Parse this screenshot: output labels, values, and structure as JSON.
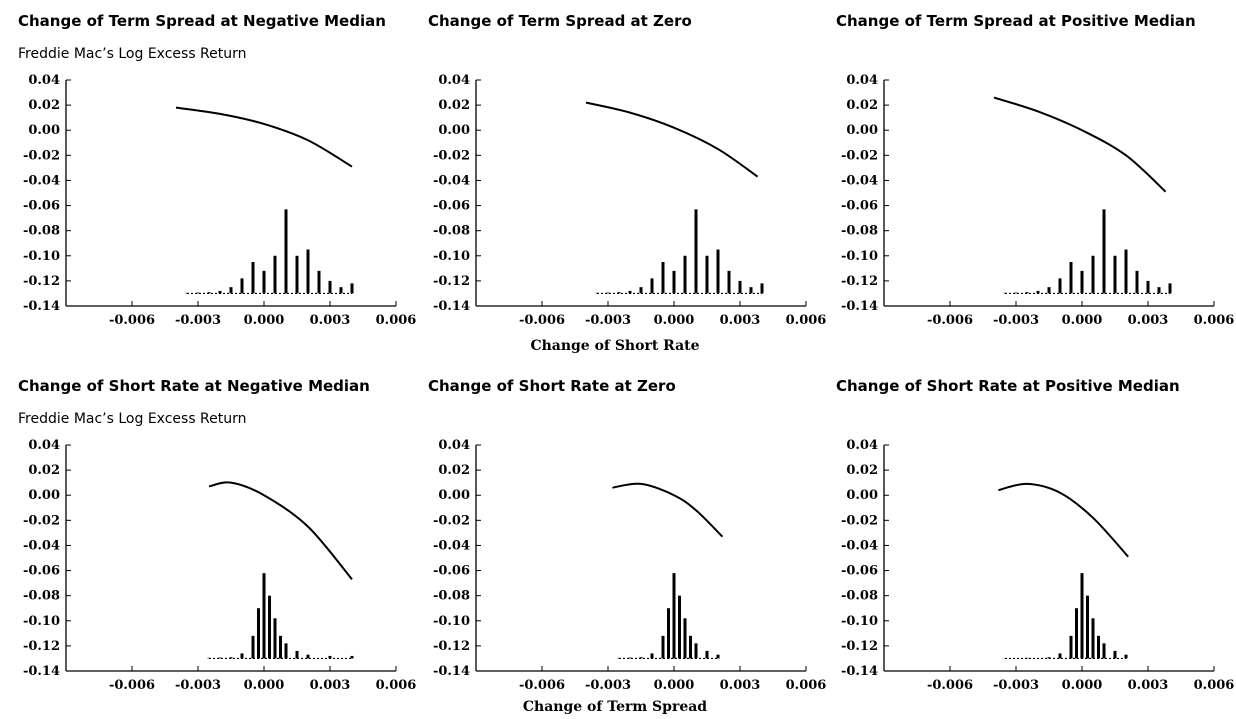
{
  "figure": {
    "xlabel_row1": "Change of Short Rate",
    "xlabel_row2": "Change of Term Spread"
  },
  "chart_data": [
    {
      "type": "line",
      "title": "Change of Term Spread at Negative Median",
      "ylabel": "Freddie Mac’s Log Excess Return",
      "xlabel": "",
      "xlim": [
        -0.009,
        0.006
      ],
      "ylim": [
        -0.14,
        0.04
      ],
      "xticks": [
        "-0.006",
        "-0.003",
        "0.000",
        "0.003",
        "0.006"
      ],
      "xtick_values": [
        -0.006,
        -0.003,
        0.0,
        0.003,
        0.006
      ],
      "yticks": [
        "0.04",
        "0.02",
        "0.00",
        "-0.02",
        "-0.04",
        "-0.06",
        "-0.08",
        "-0.10",
        "-0.12",
        "-0.14"
      ],
      "ytick_values": [
        0.04,
        0.02,
        0.0,
        -0.02,
        -0.04,
        -0.06,
        -0.08,
        -0.1,
        -0.12,
        -0.14
      ],
      "series": [
        {
          "x": [
            -0.004,
            -0.002,
            0.0,
            0.002,
            0.004
          ],
          "y": [
            0.018,
            0.013,
            0.005,
            -0.008,
            -0.029
          ]
        }
      ],
      "histogram": {
        "baseline": -0.13,
        "x": [
          -0.0035,
          -0.003,
          -0.0025,
          -0.002,
          -0.0015,
          -0.001,
          -0.0005,
          0.0,
          0.0005,
          0.001,
          0.0015,
          0.002,
          0.0025,
          0.003,
          0.0035,
          0.004
        ],
        "y": [
          -0.1295,
          -0.1293,
          -0.129,
          -0.128,
          -0.125,
          -0.118,
          -0.105,
          -0.112,
          -0.1,
          -0.063,
          -0.1,
          -0.095,
          -0.112,
          -0.12,
          -0.125,
          -0.122
        ]
      }
    },
    {
      "type": "line",
      "title": "Change of Term Spread at Zero",
      "ylabel": "",
      "xlabel": "Change of Short Rate",
      "xlim": [
        -0.009,
        0.006
      ],
      "ylim": [
        -0.14,
        0.04
      ],
      "xticks": [
        "-0.006",
        "-0.003",
        "0.000",
        "0.003",
        "0.006"
      ],
      "xtick_values": [
        -0.006,
        -0.003,
        0.0,
        0.003,
        0.006
      ],
      "yticks": [
        "0.04",
        "0.02",
        "0.00",
        "-0.02",
        "-0.04",
        "-0.06",
        "-0.08",
        "-0.10",
        "-0.12",
        "-0.14"
      ],
      "ytick_values": [
        0.04,
        0.02,
        0.0,
        -0.02,
        -0.04,
        -0.06,
        -0.08,
        -0.1,
        -0.12,
        -0.14
      ],
      "series": [
        {
          "x": [
            -0.004,
            -0.002,
            0.0,
            0.002,
            0.0038
          ],
          "y": [
            0.022,
            0.014,
            0.002,
            -0.015,
            -0.037
          ]
        }
      ],
      "histogram": {
        "baseline": -0.13,
        "x": [
          -0.0035,
          -0.003,
          -0.0025,
          -0.002,
          -0.0015,
          -0.001,
          -0.0005,
          0.0,
          0.0005,
          0.001,
          0.0015,
          0.002,
          0.0025,
          0.003,
          0.0035,
          0.004
        ],
        "y": [
          -0.1295,
          -0.1293,
          -0.129,
          -0.128,
          -0.125,
          -0.118,
          -0.105,
          -0.112,
          -0.1,
          -0.063,
          -0.1,
          -0.095,
          -0.112,
          -0.12,
          -0.125,
          -0.122
        ]
      }
    },
    {
      "type": "line",
      "title": "Change of Term Spread at Positive Median",
      "ylabel": "",
      "xlabel": "",
      "xlim": [
        -0.009,
        0.006
      ],
      "ylim": [
        -0.14,
        0.04
      ],
      "xticks": [
        "-0.006",
        "-0.003",
        "0.000",
        "0.003",
        "0.006"
      ],
      "xtick_values": [
        -0.006,
        -0.003,
        0.0,
        0.003,
        0.006
      ],
      "yticks": [
        "0.04",
        "0.02",
        "0.00",
        "-0.02",
        "-0.04",
        "-0.06",
        "-0.08",
        "-0.10",
        "-0.12",
        "-0.14"
      ],
      "ytick_values": [
        0.04,
        0.02,
        0.0,
        -0.02,
        -0.04,
        -0.06,
        -0.08,
        -0.1,
        -0.12,
        -0.14
      ],
      "series": [
        {
          "x": [
            -0.004,
            -0.002,
            0.0,
            0.002,
            0.0038
          ],
          "y": [
            0.026,
            0.015,
            0.0,
            -0.02,
            -0.049
          ]
        }
      ],
      "histogram": {
        "baseline": -0.13,
        "x": [
          -0.0035,
          -0.003,
          -0.0025,
          -0.002,
          -0.0015,
          -0.001,
          -0.0005,
          0.0,
          0.0005,
          0.001,
          0.0015,
          0.002,
          0.0025,
          0.003,
          0.0035,
          0.004
        ],
        "y": [
          -0.1295,
          -0.1293,
          -0.129,
          -0.128,
          -0.125,
          -0.118,
          -0.105,
          -0.112,
          -0.1,
          -0.063,
          -0.1,
          -0.095,
          -0.112,
          -0.12,
          -0.125,
          -0.122
        ]
      }
    },
    {
      "type": "line",
      "title": "Change of Short Rate at Negative Median",
      "ylabel": "Freddie Mac’s Log Excess Return",
      "xlabel": "",
      "xlim": [
        -0.009,
        0.006
      ],
      "ylim": [
        -0.14,
        0.04
      ],
      "xticks": [
        "-0.006",
        "-0.003",
        "0.000",
        "0.003",
        "0.006"
      ],
      "xtick_values": [
        -0.006,
        -0.003,
        0.0,
        0.003,
        0.006
      ],
      "yticks": [
        "0.04",
        "0.02",
        "0.00",
        "-0.02",
        "-0.04",
        "-0.06",
        "-0.08",
        "-0.10",
        "-0.12",
        "-0.14"
      ],
      "ytick_values": [
        0.04,
        0.02,
        0.0,
        -0.02,
        -0.04,
        -0.06,
        -0.08,
        -0.1,
        -0.12,
        -0.14
      ],
      "series": [
        {
          "x": [
            -0.0025,
            -0.0015,
            0.0,
            0.002,
            0.004
          ],
          "y": [
            0.007,
            0.01,
            0.0,
            -0.025,
            -0.067
          ]
        }
      ],
      "histogram": {
        "baseline": -0.13,
        "x": [
          -0.0025,
          -0.002,
          -0.0015,
          -0.001,
          -0.0005,
          -0.00025,
          0.0,
          0.00025,
          0.0005,
          0.00075,
          0.001,
          0.0015,
          0.002,
          0.003,
          0.004
        ],
        "y": [
          -0.1295,
          -0.1293,
          -0.129,
          -0.126,
          -0.112,
          -0.09,
          -0.062,
          -0.08,
          -0.098,
          -0.112,
          -0.118,
          -0.124,
          -0.127,
          -0.128,
          -0.128
        ]
      }
    },
    {
      "type": "line",
      "title": "Change of Short Rate at Zero",
      "ylabel": "",
      "xlabel": "Change of Term Spread",
      "xlim": [
        -0.009,
        0.006
      ],
      "ylim": [
        -0.14,
        0.04
      ],
      "xticks": [
        "-0.006",
        "-0.003",
        "0.000",
        "0.003",
        "0.006"
      ],
      "xtick_values": [
        -0.006,
        -0.003,
        0.0,
        0.003,
        0.006
      ],
      "yticks": [
        "0.04",
        "0.02",
        "0.00",
        "-0.02",
        "-0.04",
        "-0.06",
        "-0.08",
        "-0.10",
        "-0.12",
        "-0.14"
      ],
      "ytick_values": [
        0.04,
        0.02,
        0.0,
        -0.02,
        -0.04,
        -0.06,
        -0.08,
        -0.1,
        -0.12,
        -0.14
      ],
      "series": [
        {
          "x": [
            -0.0028,
            -0.0015,
            0.0,
            0.001,
            0.0022
          ],
          "y": [
            0.006,
            0.009,
            0.0,
            -0.012,
            -0.033
          ]
        }
      ],
      "histogram": {
        "baseline": -0.13,
        "x": [
          -0.0025,
          -0.002,
          -0.0015,
          -0.001,
          -0.0005,
          -0.00025,
          0.0,
          0.00025,
          0.0005,
          0.00075,
          0.001,
          0.0015,
          0.002
        ],
        "y": [
          -0.1295,
          -0.1293,
          -0.129,
          -0.126,
          -0.112,
          -0.09,
          -0.062,
          -0.08,
          -0.098,
          -0.112,
          -0.118,
          -0.124,
          -0.127
        ]
      }
    },
    {
      "type": "line",
      "title": "Change of Short Rate at Positive Median",
      "ylabel": "",
      "xlabel": "",
      "xlim": [
        -0.009,
        0.006
      ],
      "ylim": [
        -0.14,
        0.04
      ],
      "xticks": [
        "-0.006",
        "-0.003",
        "0.000",
        "0.003",
        "0.006"
      ],
      "xtick_values": [
        -0.006,
        -0.003,
        0.0,
        0.003,
        0.006
      ],
      "yticks": [
        "0.04",
        "0.02",
        "0.00",
        "-0.02",
        "-0.04",
        "-0.06",
        "-0.08",
        "-0.10",
        "-0.12",
        "-0.14"
      ],
      "ytick_values": [
        0.04,
        0.02,
        0.0,
        -0.02,
        -0.04,
        -0.06,
        -0.08,
        -0.1,
        -0.12,
        -0.14
      ],
      "series": [
        {
          "x": [
            -0.0038,
            -0.0025,
            -0.001,
            0.0005,
            0.0021
          ],
          "y": [
            0.004,
            0.009,
            0.002,
            -0.018,
            -0.049
          ]
        }
      ],
      "histogram": {
        "baseline": -0.13,
        "x": [
          -0.0035,
          -0.0025,
          -0.0015,
          -0.001,
          -0.0005,
          -0.00025,
          0.0,
          0.00025,
          0.0005,
          0.00075,
          0.001,
          0.0015,
          0.002
        ],
        "y": [
          -0.1297,
          -0.1295,
          -0.129,
          -0.126,
          -0.112,
          -0.09,
          -0.062,
          -0.08,
          -0.098,
          -0.112,
          -0.118,
          -0.124,
          -0.127
        ]
      }
    }
  ]
}
